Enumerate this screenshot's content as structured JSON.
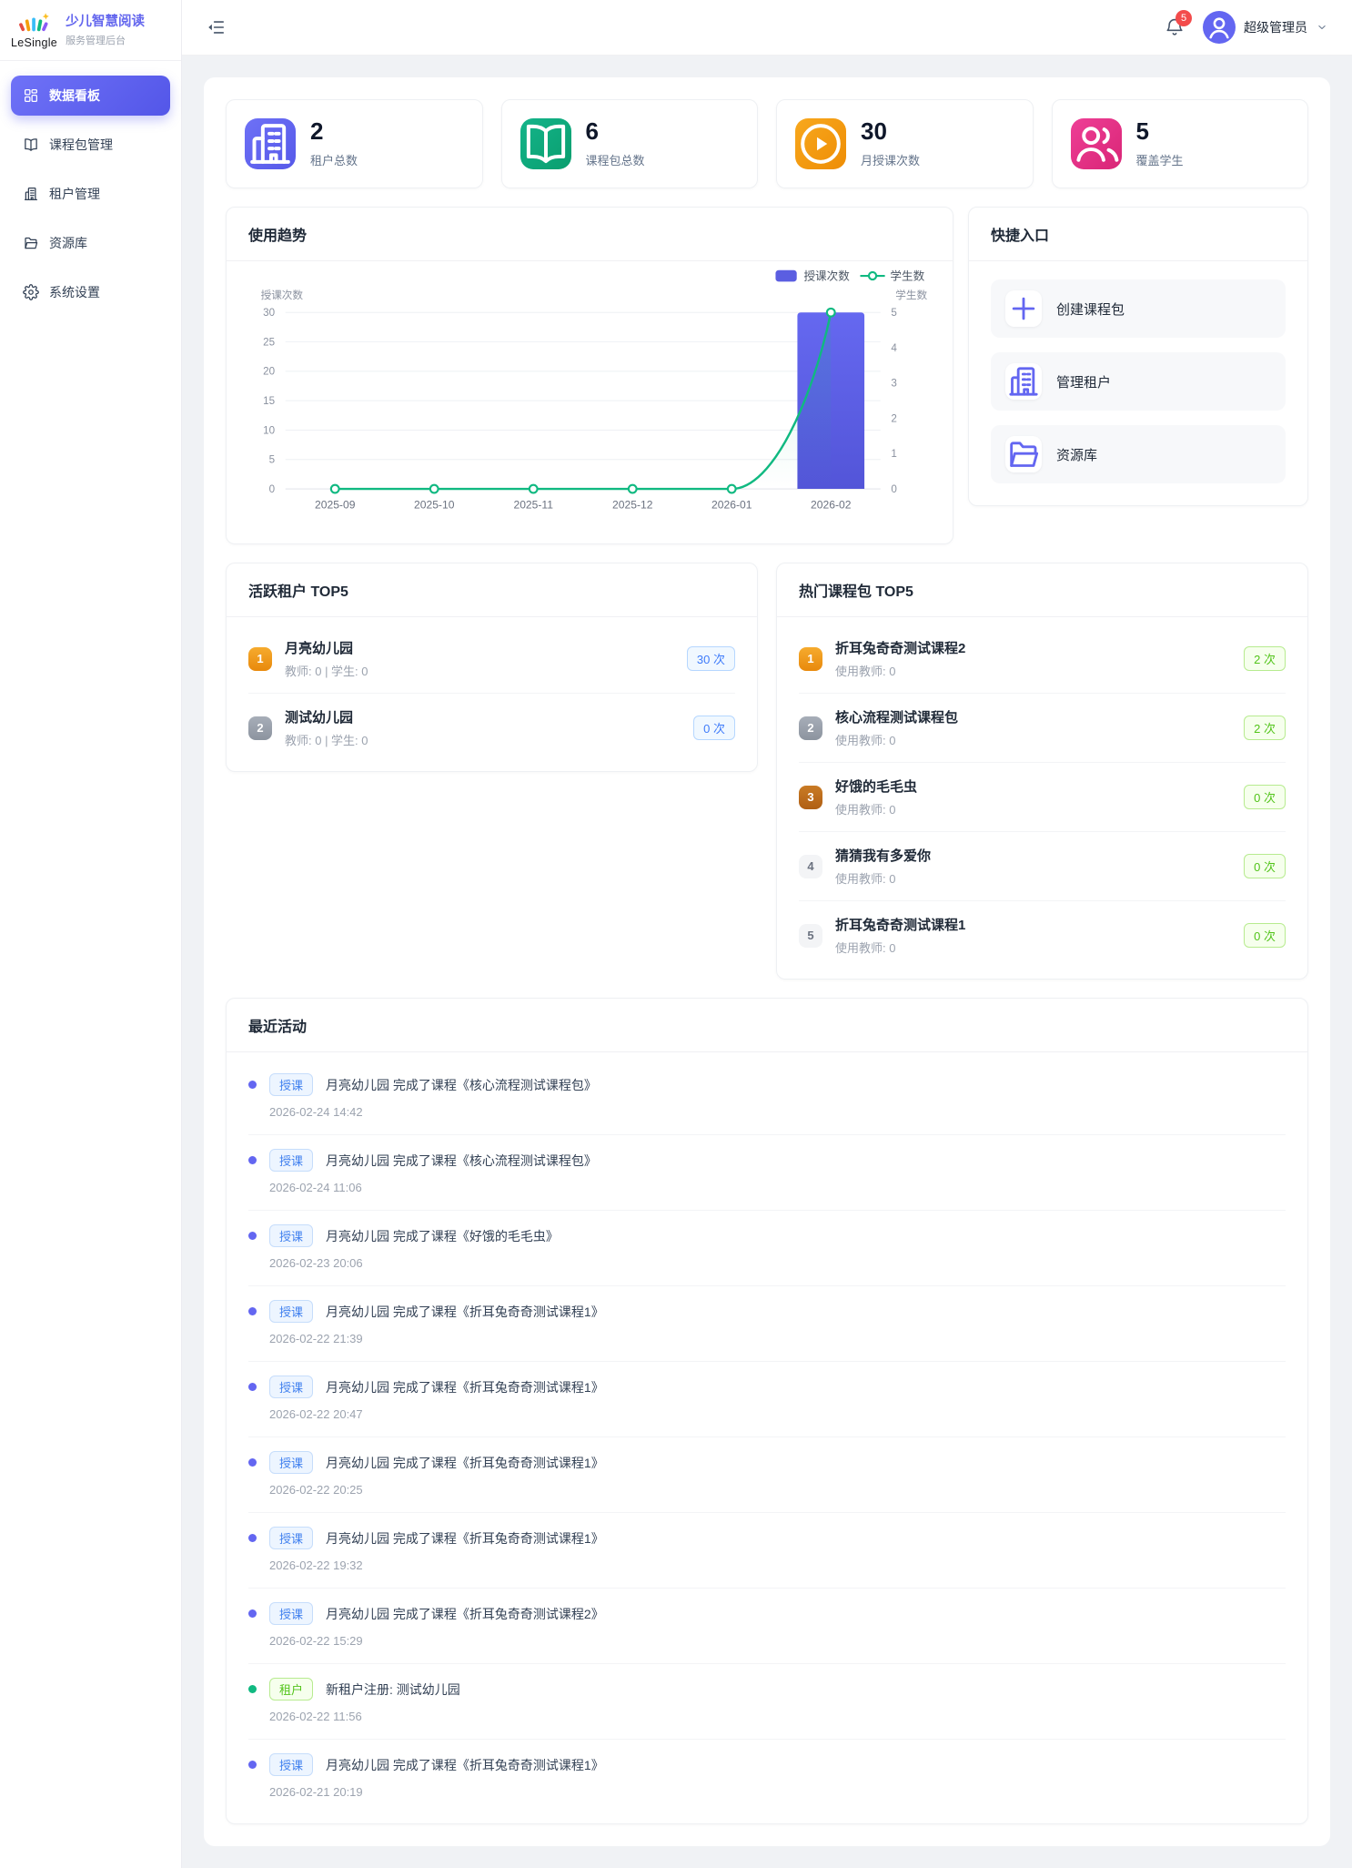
{
  "app": {
    "logo_text": "LeSingle",
    "title": "少儿智慧阅读",
    "subtitle": "服务管理后台"
  },
  "sidebar": {
    "items": [
      {
        "id": "dashboard",
        "label": "数据看板",
        "icon": "dashboard-icon",
        "active": true
      },
      {
        "id": "courses",
        "label": "课程包管理",
        "icon": "book-icon",
        "active": false
      },
      {
        "id": "tenants",
        "label": "租户管理",
        "icon": "building-icon",
        "active": false
      },
      {
        "id": "resources",
        "label": "资源库",
        "icon": "folder-icon",
        "active": false
      },
      {
        "id": "settings",
        "label": "系统设置",
        "icon": "gear-icon",
        "active": false
      }
    ]
  },
  "header": {
    "notification_count": "5",
    "user_name": "超级管理员"
  },
  "stats": [
    {
      "value": "2",
      "label": "租户总数",
      "icon": "building-icon",
      "gradient": [
        "#6e71f6",
        "#5659e9"
      ]
    },
    {
      "value": "6",
      "label": "课程包总数",
      "icon": "book-icon",
      "gradient": [
        "#14b48a",
        "#0a9e6e"
      ]
    },
    {
      "value": "30",
      "label": "月授课次数",
      "icon": "play-icon",
      "gradient": [
        "#f8a81d",
        "#ee8d05"
      ]
    },
    {
      "value": "5",
      "label": "覆盖学生",
      "icon": "students-icon",
      "gradient": [
        "#ee3f96",
        "#d92576"
      ]
    }
  ],
  "trend": {
    "title": "使用趋势"
  },
  "chart_data": {
    "type": "bar+line",
    "categories": [
      "2025-09",
      "2025-10",
      "2025-11",
      "2025-12",
      "2026-01",
      "2026-02"
    ],
    "series": [
      {
        "name": "授课次数",
        "type": "bar",
        "axis": "left",
        "values": [
          0,
          0,
          0,
          0,
          0,
          30
        ],
        "color": "#5b5ee1"
      },
      {
        "name": "学生数",
        "type": "line",
        "axis": "right",
        "values": [
          0,
          0,
          0,
          0,
          0,
          5
        ],
        "color": "#10b981"
      }
    ],
    "left_axis": {
      "name": "授课次数",
      "min": 0,
      "max": 30,
      "step": 5
    },
    "right_axis": {
      "name": "学生数",
      "min": 0,
      "max": 5,
      "step": 1
    },
    "legend_position": "top-right",
    "grid": true
  },
  "quick": {
    "title": "快捷入口",
    "items": [
      {
        "label": "创建课程包",
        "icon": "plus-icon"
      },
      {
        "label": "管理租户",
        "icon": "building-icon"
      },
      {
        "label": "资源库",
        "icon": "folder-icon"
      }
    ]
  },
  "top_tenants": {
    "title": "活跃租户 TOP5",
    "badge_style": "blue",
    "items": [
      {
        "rank": "1",
        "name": "月亮幼儿园",
        "meta": "教师: 0 | 学生: 0",
        "badge": "30 次"
      },
      {
        "rank": "2",
        "name": "测试幼儿园",
        "meta": "教师: 0 | 学生: 0",
        "badge": "0 次"
      }
    ]
  },
  "top_courses": {
    "title": "热门课程包 TOP5",
    "badge_style": "green",
    "items": [
      {
        "rank": "1",
        "name": "折耳兔奇奇测试课程2",
        "meta": "使用教师: 0",
        "badge": "2 次"
      },
      {
        "rank": "2",
        "name": "核心流程测试课程包",
        "meta": "使用教师: 0",
        "badge": "2 次"
      },
      {
        "rank": "3",
        "name": "好饿的毛毛虫",
        "meta": "使用教师: 0",
        "badge": "0 次"
      },
      {
        "rank": "4",
        "name": "猜猜我有多爱你",
        "meta": "使用教师: 0",
        "badge": "0 次"
      },
      {
        "rank": "5",
        "name": "折耳兔奇奇测试课程1",
        "meta": "使用教师: 0",
        "badge": "0 次"
      }
    ]
  },
  "recent": {
    "title": "最近活动",
    "items": [
      {
        "tag": "授课",
        "type": "course",
        "text": "月亮幼儿园 完成了课程《核心流程测试课程包》",
        "time": "2026-02-24 14:42"
      },
      {
        "tag": "授课",
        "type": "course",
        "text": "月亮幼儿园 完成了课程《核心流程测试课程包》",
        "time": "2026-02-24 11:06"
      },
      {
        "tag": "授课",
        "type": "course",
        "text": "月亮幼儿园 完成了课程《好饿的毛毛虫》",
        "time": "2026-02-23 20:06"
      },
      {
        "tag": "授课",
        "type": "course",
        "text": "月亮幼儿园 完成了课程《折耳兔奇奇测试课程1》",
        "time": "2026-02-22 21:39"
      },
      {
        "tag": "授课",
        "type": "course",
        "text": "月亮幼儿园 完成了课程《折耳兔奇奇测试课程1》",
        "time": "2026-02-22 20:47"
      },
      {
        "tag": "授课",
        "type": "course",
        "text": "月亮幼儿园 完成了课程《折耳兔奇奇测试课程1》",
        "time": "2026-02-22 20:25"
      },
      {
        "tag": "授课",
        "type": "course",
        "text": "月亮幼儿园 完成了课程《折耳兔奇奇测试课程1》",
        "time": "2026-02-22 19:32"
      },
      {
        "tag": "授课",
        "type": "course",
        "text": "月亮幼儿园 完成了课程《折耳兔奇奇测试课程2》",
        "time": "2026-02-22 15:29"
      },
      {
        "tag": "租户",
        "type": "tenant",
        "text": "新租户注册: 测试幼儿园",
        "time": "2026-02-22 11:56"
      },
      {
        "tag": "授课",
        "type": "course",
        "text": "月亮幼儿园 完成了课程《折耳兔奇奇测试课程1》",
        "time": "2026-02-21 20:19"
      }
    ]
  },
  "colors": {
    "primary": "#6366f1",
    "success": "#10b981",
    "warning": "#f59e0b",
    "pink": "#ec4899",
    "bar": "#5b5ee1",
    "line": "#10b981",
    "badge_blue": "#3e7bfa",
    "badge_green": "#52c41a",
    "notification_red": "#f34b4b"
  }
}
